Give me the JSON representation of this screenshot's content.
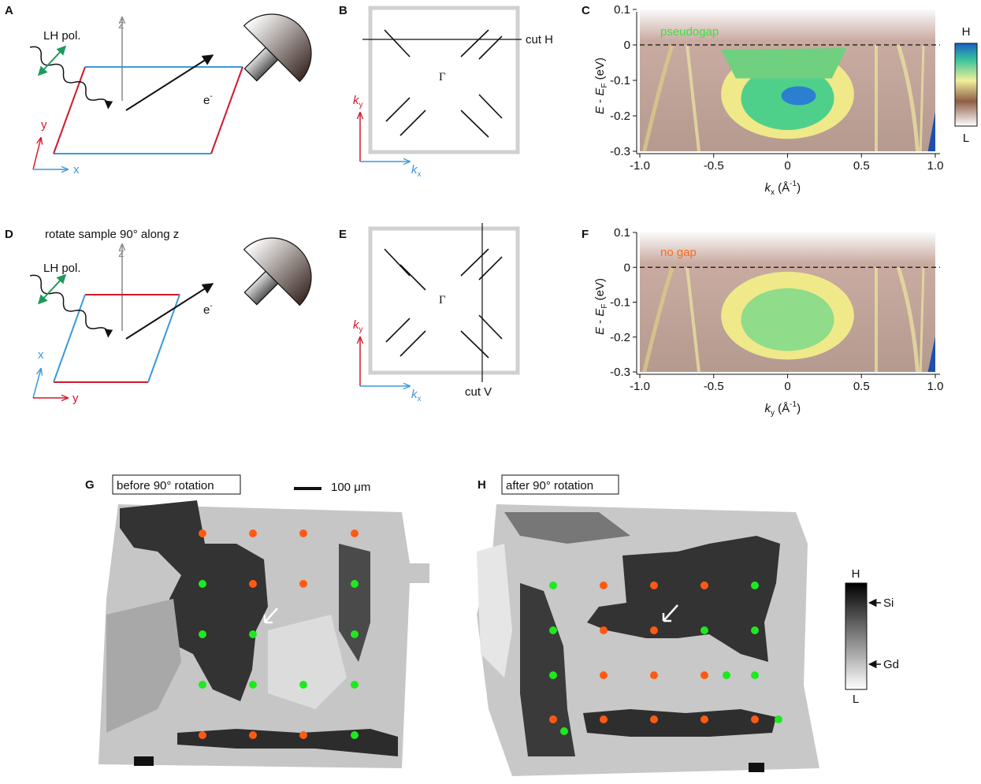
{
  "panels": {
    "a": {
      "letter": "A",
      "pol": "LH pol.",
      "z": "z",
      "y": "y",
      "x": "x",
      "electron": [
        "e",
        "-"
      ]
    },
    "b": {
      "letter": "B",
      "cut": "cut H",
      "gamma": "Γ",
      "ky": [
        "k",
        "y"
      ],
      "kx": [
        "k",
        "x"
      ]
    },
    "c": {
      "letter": "C",
      "annotation": "pseudogap",
      "xlabel": [
        "k",
        "x",
        " (Å",
        "-1",
        ")"
      ],
      "ylabel": [
        "E",
        " - ",
        "E",
        "F",
        " (eV)"
      ],
      "xlim": [
        -1,
        1
      ],
      "ylim": [
        -0.3,
        0.1
      ],
      "xticks": [
        {
          "value": -1,
          "label": "-1.0"
        },
        -0.5,
        0,
        0.5,
        {
          "value": 1,
          "label": "1.0"
        }
      ],
      "yticks": [
        0.1,
        0,
        -0.1,
        -0.2,
        -0.3
      ],
      "colorbar": [
        "H",
        "L"
      ]
    },
    "d": {
      "letter": "D",
      "note": "rotate sample 90° along z",
      "pol": "LH pol.",
      "z": "z",
      "x": "x",
      "y": "y",
      "electron": [
        "e",
        "-"
      ]
    },
    "e": {
      "letter": "E",
      "cut": "cut V",
      "gamma": "Γ",
      "ky": [
        "k",
        "y"
      ],
      "kx": [
        "k",
        "x"
      ]
    },
    "f": {
      "letter": "F",
      "annotation": "no gap",
      "xlabel": [
        "k",
        "y",
        " (Å",
        "-1",
        ")"
      ],
      "ylabel": [
        "E",
        " - ",
        "E",
        "F",
        " (eV)"
      ],
      "xlim": [
        -1,
        1
      ],
      "ylim": [
        -0.3,
        0.1
      ],
      "xticks": [
        {
          "value": -1,
          "label": "-1.0"
        },
        -0.5,
        0,
        0.5,
        {
          "value": 1,
          "label": "1.0"
        }
      ],
      "yticks": [
        0.1,
        0,
        -0.1,
        -0.2,
        -0.3
      ]
    },
    "g": {
      "letter": "G",
      "label": "before 90° rotation",
      "scale": "100 μm"
    },
    "h": {
      "letter": "H",
      "label": "after 90° rotation",
      "colorbar": {
        "high": "H",
        "si": "Si",
        "gd": "Gd",
        "low": "L"
      }
    }
  }
}
